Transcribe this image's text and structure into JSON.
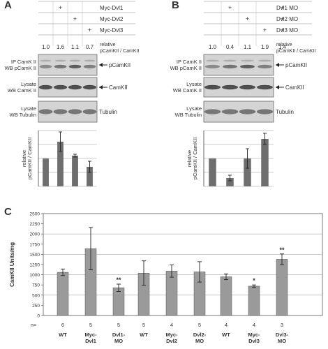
{
  "panelA": {
    "letter": "A",
    "conditions": [
      "Myc-Dvl1",
      "Myc-Dvl2",
      "Myc-Dvl3"
    ],
    "plus_rows": [
      [
        2
      ],
      [
        3
      ],
      [
        4
      ]
    ],
    "quant_values": [
      "1.0",
      "1.6",
      "1.1",
      "0.7"
    ],
    "relative_label": [
      "relative",
      "pCamKII / CamKII"
    ],
    "blots": [
      {
        "left": [
          "IP CamK II",
          "WB pCamK II"
        ],
        "right": "pCamKII",
        "arrow": true
      },
      {
        "left": [
          "Lysate",
          "WB CamK II"
        ],
        "right": "CamKII",
        "arrow": true
      },
      {
        "left": [
          "Lysate",
          "WB Tubulin"
        ],
        "right": "Tubulin",
        "arrow": false
      }
    ],
    "ylabel": [
      "relative",
      "pCamKII / CamKII"
    ]
  },
  "panelB": {
    "letter": "B",
    "conditions": [
      "Dvl1 MO",
      "Dvl2 MO",
      "Dvl3 MO"
    ],
    "plus_rows": [
      [
        2,
        5
      ],
      [
        3,
        5
      ],
      [
        4,
        5
      ]
    ],
    "quant_values": [
      "1.0",
      "0.4",
      "1.1",
      "1.9",
      "1.4"
    ],
    "relative_label": [
      "relative",
      "pCamKII / CamKII"
    ],
    "blots": [
      {
        "left": [
          "IP CamK II",
          "WB pCamK II"
        ],
        "right": "pCamKII",
        "arrow": true
      },
      {
        "left": [
          "Lysate",
          "WB CamK II"
        ],
        "right": "CamKII",
        "arrow": true
      },
      {
        "left": [
          "Lysate",
          "WB Tubulin"
        ],
        "right": "Tubulin",
        "arrow": false
      }
    ],
    "ylabel": [
      "relative",
      "pCamKII / CamKII"
    ]
  },
  "panelC": {
    "letter": "C",
    "ylabel": "CamKII Units/mg",
    "n_label": "n=",
    "y_ticks": [
      "0",
      "250",
      "500",
      "750",
      "1000",
      "1250",
      "1500",
      "1750",
      "2000",
      "2250",
      "2500"
    ]
  },
  "chart_data": [
    {
      "type": "bar",
      "panel": "A",
      "values": [
        1.0,
        1.6,
        1.1,
        0.7
      ],
      "errors": [
        0.0,
        0.35,
        0.05,
        0.2
      ],
      "ylim": [
        0,
        2
      ]
    },
    {
      "type": "bar",
      "panel": "B",
      "values": [
        1.0,
        0.3,
        1.0,
        1.7
      ],
      "errors": [
        0.0,
        0.1,
        0.35,
        0.2
      ],
      "ylim": [
        0,
        2
      ]
    },
    {
      "type": "bar",
      "panel": "C",
      "ylabel": "CamKII Units/mg",
      "ylim": [
        0,
        2500
      ],
      "grid": true,
      "groups": [
        {
          "categories": [
            [
              "WT"
            ],
            [
              "Myc-",
              "Dvl1"
            ],
            [
              "Dvl1-",
              "MO"
            ]
          ],
          "values": [
            1060,
            1640,
            680
          ],
          "errors": [
            80,
            520,
            90
          ],
          "n": [
            "6",
            "5",
            "5"
          ],
          "significance": [
            "",
            "",
            "**"
          ]
        },
        {
          "categories": [
            [
              "WT"
            ],
            [
              "Myc-",
              "Dvl2"
            ],
            [
              "Dvl2-",
              "MO"
            ]
          ],
          "values": [
            1040,
            1090,
            1070
          ],
          "errors": [
            300,
            150,
            250
          ],
          "n": [
            "5",
            "4",
            "5"
          ],
          "significance": [
            "",
            "",
            ""
          ]
        },
        {
          "categories": [
            [
              "WT"
            ],
            [
              "Myc-",
              "Dvl3"
            ],
            [
              "Dvl3-",
              "MO"
            ]
          ],
          "values": [
            950,
            720,
            1380
          ],
          "errors": [
            70,
            30,
            130
          ],
          "n": [
            "4",
            "4",
            "3"
          ],
          "significance": [
            "",
            "*",
            "**"
          ]
        }
      ]
    }
  ]
}
